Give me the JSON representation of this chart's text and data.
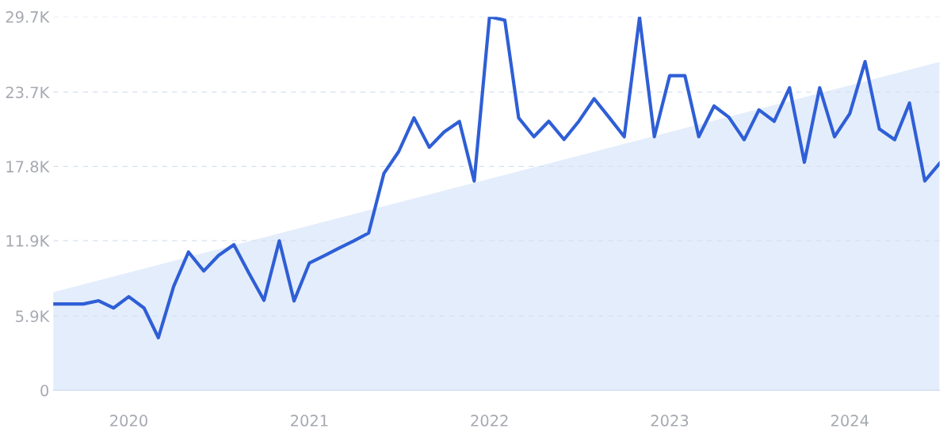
{
  "chart_data": {
    "type": "line",
    "x": [
      "2019-08",
      "2019-09",
      "2019-10",
      "2019-11",
      "2019-12",
      "2020-01",
      "2020-02",
      "2020-03",
      "2020-04",
      "2020-05",
      "2020-06",
      "2020-07",
      "2020-08",
      "2020-09",
      "2020-10",
      "2020-11",
      "2020-12",
      "2021-01",
      "2021-02",
      "2021-03",
      "2021-04",
      "2021-05",
      "2021-06",
      "2021-07",
      "2021-08",
      "2021-09",
      "2021-10",
      "2021-11",
      "2021-12",
      "2022-01",
      "2022-02",
      "2022-03",
      "2022-04",
      "2022-05",
      "2022-06",
      "2022-07",
      "2022-08",
      "2022-09",
      "2022-10",
      "2022-11",
      "2022-12",
      "2023-01",
      "2023-02",
      "2023-03",
      "2023-04",
      "2023-05",
      "2023-06",
      "2023-07",
      "2023-08",
      "2023-09",
      "2023-10",
      "2023-11",
      "2023-12",
      "2024-01",
      "2024-02",
      "2024-03",
      "2024-04",
      "2024-05",
      "2024-06",
      "2024-07"
    ],
    "series": [
      {
        "type": "area",
        "color": "#e4edfb",
        "x": [
          "2019-08",
          "2024-07"
        ],
        "values": [
          7800,
          26100
        ]
      },
      {
        "color": "#2f5fd6",
        "values": [
          6860,
          6860,
          6860,
          7120,
          6540,
          7440,
          6540,
          4180,
          8260,
          10990,
          9490,
          10720,
          11570,
          9270,
          7150,
          11880,
          7100,
          10120,
          10720,
          11280,
          11880,
          12500,
          17240,
          18980,
          21660,
          19320,
          20540,
          21370,
          16640,
          29700,
          29430,
          21660,
          20160,
          21390,
          19940,
          21390,
          23180,
          21660,
          20160,
          29650,
          20160,
          25010,
          25010,
          20160,
          22600,
          21710,
          19920,
          22290,
          21390,
          24050,
          18130,
          24050,
          20160,
          21990,
          26130,
          20770,
          19920,
          22840,
          16640,
          18040
        ]
      }
    ],
    "xlim": [
      "2019-08",
      "2024-07"
    ],
    "xticks": [
      {
        "value": "2020-01",
        "label": "2020"
      },
      {
        "value": "2021-01",
        "label": "2021"
      },
      {
        "value": "2022-01",
        "label": "2022"
      },
      {
        "value": "2023-01",
        "label": "2023"
      },
      {
        "value": "2024-01",
        "label": "2024"
      }
    ],
    "ylim": [
      0,
      29700
    ],
    "yticks": [
      {
        "value": 0,
        "label": "0"
      },
      {
        "value": 5900,
        "label": "5.9K"
      },
      {
        "value": 11900,
        "label": "11.9K"
      },
      {
        "value": 17800,
        "label": "17.8K"
      },
      {
        "value": 23700,
        "label": "23.7K"
      },
      {
        "value": 29700,
        "label": "29.7K"
      }
    ],
    "grid": "y",
    "line_style": "solid",
    "legend": false
  }
}
